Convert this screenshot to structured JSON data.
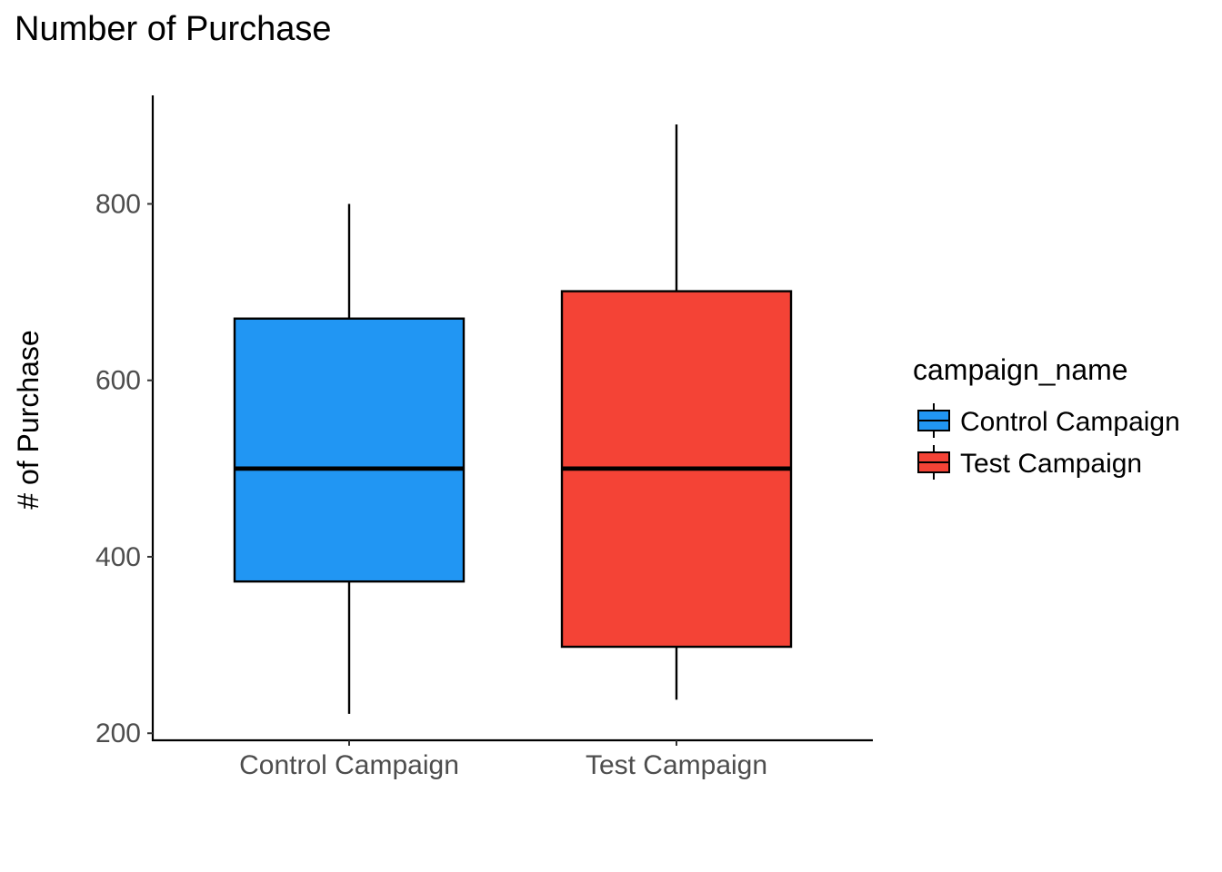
{
  "chart_data": {
    "type": "boxplot",
    "title": "Number of Purchase",
    "xlabel": "",
    "ylabel": "# of Purchase",
    "ylim": [
      192,
      923
    ],
    "yticks": [
      200,
      400,
      600,
      800
    ],
    "categories": [
      "Control Campaign",
      "Test Campaign"
    ],
    "series": [
      {
        "name": "Control Campaign",
        "color": "#2196F3",
        "min": 222,
        "q1": 372,
        "median": 500,
        "q3": 670,
        "max": 800
      },
      {
        "name": "Test Campaign",
        "color": "#F44336",
        "min": 238,
        "q1": 298,
        "median": 500,
        "q3": 701,
        "max": 890
      }
    ],
    "legend": {
      "title": "campaign_name",
      "position": "right",
      "items": [
        "Control Campaign",
        "Test Campaign"
      ]
    },
    "grid": false
  }
}
